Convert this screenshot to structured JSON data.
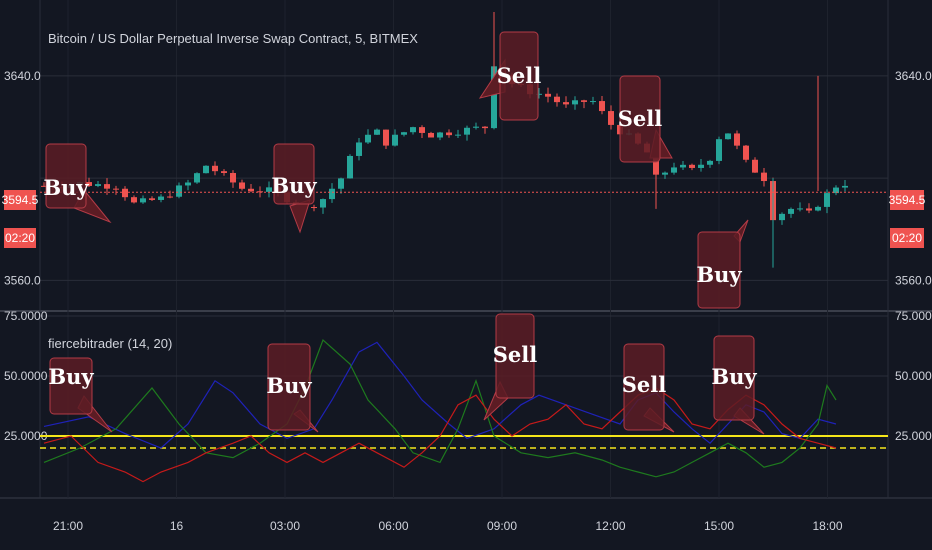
{
  "chart_data": [
    {
      "type": "candlestick",
      "title": "Bitcoin / US Dollar Perpetual Inverse Swap Contract, 5, BITMEX",
      "ylim": [
        3550,
        3665
      ],
      "y_ticks": [
        "3640.0",
        "3560.0"
      ],
      "x_ticks": [
        "21:00",
        "16",
        "03:00",
        "06:00",
        "09:00",
        "12:00",
        "15:00",
        "18:00"
      ],
      "grid": true,
      "current_price": "3594.5",
      "countdown": "02:20",
      "colors": {
        "up": "#26a69a",
        "down": "#ef5350",
        "price_line": "#ef5350",
        "annotation": "#5c1c24"
      },
      "close_trend": [
        [
          0,
          3597
        ],
        [
          4,
          3598
        ],
        [
          8,
          3597
        ],
        [
          10,
          3590
        ],
        [
          13,
          3592
        ],
        [
          16,
          3598
        ],
        [
          18,
          3605
        ],
        [
          19,
          3603
        ],
        [
          22,
          3596
        ],
        [
          25,
          3595
        ],
        [
          27,
          3592
        ],
        [
          29,
          3588
        ],
        [
          31,
          3592
        ],
        [
          33,
          3600
        ],
        [
          35,
          3615
        ],
        [
          37,
          3618
        ],
        [
          38,
          3614
        ],
        [
          41,
          3620
        ],
        [
          43,
          3617
        ],
        [
          45,
          3618
        ],
        [
          49,
          3620
        ],
        [
          50,
          3645
        ],
        [
          52,
          3637
        ],
        [
          54,
          3634
        ],
        [
          56,
          3632
        ],
        [
          58,
          3628
        ],
        [
          60,
          3630
        ],
        [
          61,
          3630
        ],
        [
          63,
          3621
        ],
        [
          65,
          3616
        ],
        [
          67,
          3610
        ],
        [
          68,
          3600
        ],
        [
          70,
          3605
        ],
        [
          72,
          3603
        ],
        [
          74,
          3608
        ],
        [
          75,
          3616
        ],
        [
          76,
          3618
        ],
        [
          78,
          3606
        ],
        [
          80,
          3600
        ],
        [
          81,
          3585
        ],
        [
          83,
          3588
        ],
        [
          85,
          3586
        ],
        [
          86,
          3590
        ],
        [
          88,
          3597
        ],
        [
          89,
          3598
        ]
      ],
      "annotations": [
        {
          "label": "Buy"
        },
        {
          "label": "Buy"
        },
        {
          "label": "Sell"
        },
        {
          "label": "Sell"
        },
        {
          "label": "Buy"
        }
      ]
    },
    {
      "type": "line",
      "title": "fiercebitrader (14, 20)",
      "ylim": [
        0,
        75
      ],
      "y_ticks": [
        "75.0000",
        "50.0000",
        "25.0000"
      ],
      "colors": {
        "blue": "#1f22b8",
        "green": "#1e7a1e",
        "red": "#c61a1a",
        "level": "#f5e61a"
      },
      "level_solid": 25,
      "level_dashed": 20,
      "series": [
        {
          "color": "blue",
          "values": [
            [
              0,
              29
            ],
            [
              5,
              33
            ],
            [
              9,
              26
            ],
            [
              13,
              20
            ],
            [
              16,
              30
            ],
            [
              19,
              48
            ],
            [
              21,
              43
            ],
            [
              24,
              30
            ],
            [
              27,
              24
            ],
            [
              30,
              28
            ],
            [
              32,
              40
            ],
            [
              35,
              60
            ],
            [
              37,
              64
            ],
            [
              40,
              50
            ],
            [
              42,
              40
            ],
            [
              45,
              30
            ],
            [
              47,
              24
            ],
            [
              50,
              28
            ],
            [
              53,
              38
            ],
            [
              55,
              42
            ],
            [
              58,
              38
            ],
            [
              61,
              34
            ],
            [
              64,
              30
            ],
            [
              66,
              40
            ],
            [
              68,
              43
            ],
            [
              70,
              35
            ],
            [
              72,
              28
            ],
            [
              74,
              22
            ],
            [
              76,
              30
            ],
            [
              78,
              38
            ],
            [
              80,
              35
            ],
            [
              82,
              26
            ],
            [
              84,
              24
            ],
            [
              86,
              32
            ],
            [
              88,
              30
            ]
          ]
        },
        {
          "color": "green",
          "values": [
            [
              0,
              14
            ],
            [
              4,
              20
            ],
            [
              8,
              28
            ],
            [
              12,
              45
            ],
            [
              15,
              30
            ],
            [
              18,
              18
            ],
            [
              21,
              16
            ],
            [
              24,
              22
            ],
            [
              27,
              30
            ],
            [
              29,
              45
            ],
            [
              31,
              65
            ],
            [
              34,
              55
            ],
            [
              36,
              40
            ],
            [
              39,
              28
            ],
            [
              41,
              18
            ],
            [
              44,
              14
            ],
            [
              46,
              28
            ],
            [
              48,
              48
            ],
            [
              50,
              25
            ],
            [
              53,
              18
            ],
            [
              56,
              16
            ],
            [
              59,
              18
            ],
            [
              62,
              15
            ],
            [
              64,
              12
            ],
            [
              66,
              10
            ],
            [
              68,
              8
            ],
            [
              70,
              10
            ],
            [
              72,
              14
            ],
            [
              74,
              18
            ],
            [
              76,
              22
            ],
            [
              78,
              18
            ],
            [
              80,
              12
            ],
            [
              82,
              14
            ],
            [
              84,
              20
            ],
            [
              86,
              30
            ],
            [
              87,
              46
            ],
            [
              88,
              40
            ]
          ]
        },
        {
          "color": "red",
          "values": [
            [
              0,
              22
            ],
            [
              3,
              25
            ],
            [
              6,
              14
            ],
            [
              9,
              10
            ],
            [
              11,
              6
            ],
            [
              13,
              10
            ],
            [
              16,
              14
            ],
            [
              18,
              18
            ],
            [
              21,
              22
            ],
            [
              23,
              25
            ],
            [
              25,
              18
            ],
            [
              27,
              14
            ],
            [
              29,
              18
            ],
            [
              31,
              14
            ],
            [
              33,
              18
            ],
            [
              35,
              22
            ],
            [
              37,
              18
            ],
            [
              40,
              12
            ],
            [
              42,
              18
            ],
            [
              44,
              25
            ],
            [
              46,
              38
            ],
            [
              48,
              42
            ],
            [
              50,
              32
            ],
            [
              52,
              25
            ],
            [
              54,
              30
            ],
            [
              56,
              32
            ],
            [
              58,
              38
            ],
            [
              60,
              30
            ],
            [
              62,
              28
            ],
            [
              64,
              35
            ],
            [
              66,
              42
            ],
            [
              68,
              45
            ],
            [
              70,
              40
            ],
            [
              72,
              30
            ],
            [
              74,
              28
            ],
            [
              76,
              36
            ],
            [
              78,
              42
            ],
            [
              80,
              38
            ],
            [
              82,
              30
            ],
            [
              84,
              24
            ],
            [
              86,
              22
            ],
            [
              88,
              20
            ]
          ]
        }
      ],
      "annotations": [
        {
          "label": "Buy"
        },
        {
          "label": "Buy"
        },
        {
          "label": "Sell"
        },
        {
          "label": "Sell"
        },
        {
          "label": "Buy"
        }
      ]
    }
  ]
}
